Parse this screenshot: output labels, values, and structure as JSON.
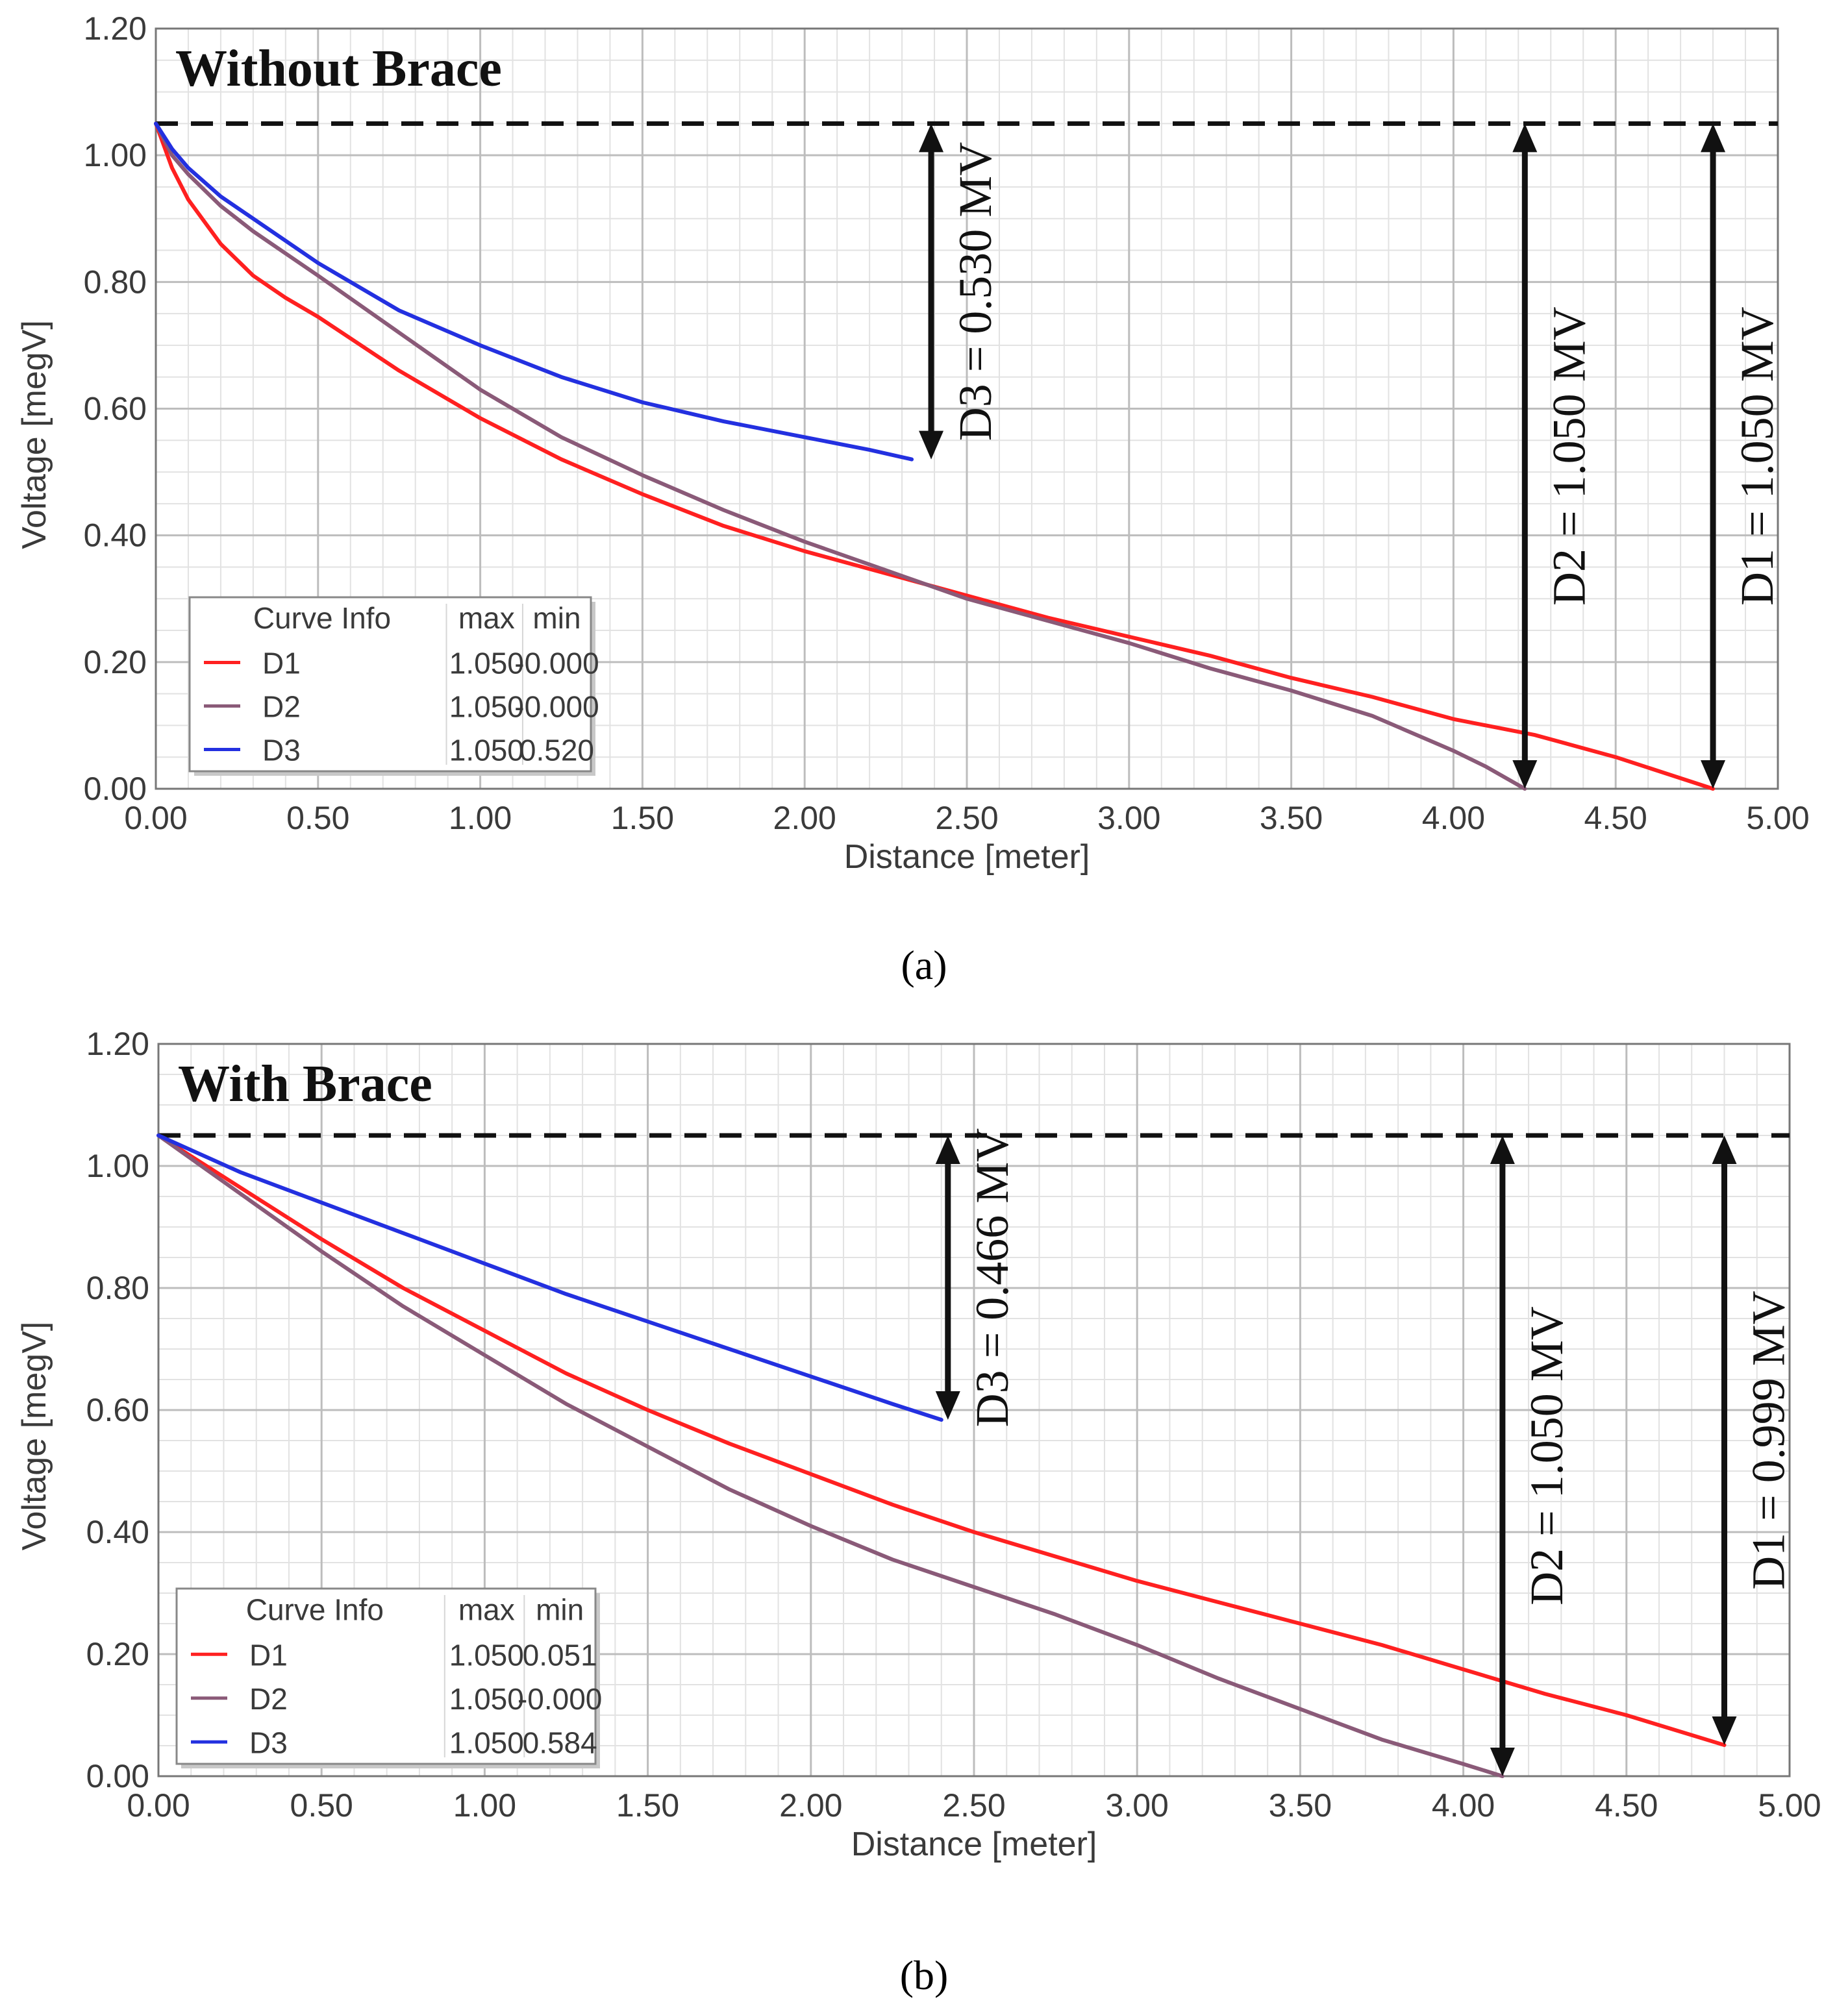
{
  "figure": {
    "caption_a": "(a)",
    "caption_b": "(b)"
  },
  "colors": {
    "D1": "#ff2020",
    "D2": "#8a5a78",
    "D3": "#2330e0",
    "grid_major": "#bdbdbd",
    "grid_minor": "#e2e2e2",
    "annotation": "#111111"
  },
  "chart_data": [
    {
      "id": "a",
      "type": "line",
      "title": "Without Brace",
      "caption": "(a)",
      "xlabel": "Distance [meter]",
      "ylabel": "Voltage [megV]",
      "xlim": [
        0,
        5
      ],
      "ylim": [
        0,
        1.2
      ],
      "xticks": [
        "0.00",
        "0.50",
        "1.00",
        "1.50",
        "2.00",
        "2.50",
        "3.00",
        "3.50",
        "4.00",
        "4.50",
        "5.00"
      ],
      "yticks": [
        "0.00",
        "0.20",
        "0.40",
        "0.60",
        "0.80",
        "1.00",
        "1.20"
      ],
      "reference_level": 1.05,
      "series": [
        {
          "name": "D1",
          "x": [
            0,
            0.05,
            0.1,
            0.2,
            0.3,
            0.4,
            0.5,
            0.75,
            1.0,
            1.25,
            1.5,
            1.75,
            2.0,
            2.25,
            2.5,
            2.75,
            3.0,
            3.25,
            3.5,
            3.75,
            4.0,
            4.25,
            4.5,
            4.8
          ],
          "y": [
            1.05,
            0.98,
            0.93,
            0.86,
            0.81,
            0.775,
            0.745,
            0.66,
            0.585,
            0.52,
            0.465,
            0.415,
            0.375,
            0.34,
            0.305,
            0.27,
            0.24,
            0.21,
            0.175,
            0.145,
            0.11,
            0.085,
            0.05,
            0.0
          ]
        },
        {
          "name": "D2",
          "x": [
            0,
            0.05,
            0.1,
            0.2,
            0.3,
            0.5,
            0.75,
            1.0,
            1.25,
            1.5,
            1.75,
            2.0,
            2.25,
            2.5,
            2.75,
            3.0,
            3.25,
            3.5,
            3.75,
            4.0,
            4.1,
            4.22
          ],
          "y": [
            1.05,
            1.0,
            0.97,
            0.92,
            0.88,
            0.81,
            0.72,
            0.63,
            0.555,
            0.495,
            0.44,
            0.39,
            0.345,
            0.3,
            0.265,
            0.23,
            0.19,
            0.155,
            0.115,
            0.06,
            0.035,
            0.0
          ]
        },
        {
          "name": "D3",
          "x": [
            0,
            0.05,
            0.1,
            0.2,
            0.3,
            0.5,
            0.75,
            1.0,
            1.25,
            1.5,
            1.75,
            2.0,
            2.2,
            2.33
          ],
          "y": [
            1.05,
            1.01,
            0.98,
            0.935,
            0.9,
            0.83,
            0.755,
            0.7,
            0.65,
            0.61,
            0.58,
            0.555,
            0.535,
            0.52
          ]
        }
      ],
      "legend": {
        "header": [
          "Curve Info",
          "max",
          "min"
        ],
        "rows": [
          {
            "name": "D1",
            "max": "1.050",
            "min": "-0.000"
          },
          {
            "name": "D2",
            "max": "1.050",
            "min": "-0.000"
          },
          {
            "name": "D3",
            "max": "1.050",
            "min": "0.520"
          }
        ],
        "position": "bottom-left"
      },
      "annotations": [
        {
          "label": "D3 = 0.530 MV",
          "x": 2.39,
          "y_from": 1.05,
          "y_to": 0.52
        },
        {
          "label": "D2 = 1.050 MV",
          "x": 4.22,
          "y_from": 1.05,
          "y_to": 0.0
        },
        {
          "label": "D1 = 1.050 MV",
          "x": 4.8,
          "y_from": 1.05,
          "y_to": 0.0
        }
      ]
    },
    {
      "id": "b",
      "type": "line",
      "title": "With Brace",
      "caption": "(b)",
      "xlabel": "Distance [meter]",
      "ylabel": "Voltage [megV]",
      "xlim": [
        0,
        5
      ],
      "ylim": [
        0,
        1.2
      ],
      "xticks": [
        "0.00",
        "0.50",
        "1.00",
        "1.50",
        "2.00",
        "2.50",
        "3.00",
        "3.50",
        "4.00",
        "4.50",
        "5.00"
      ],
      "yticks": [
        "0.00",
        "0.20",
        "0.40",
        "0.60",
        "0.80",
        "1.00",
        "1.20"
      ],
      "reference_level": 1.05,
      "series": [
        {
          "name": "D1",
          "x": [
            0,
            0.25,
            0.5,
            0.75,
            1.0,
            1.25,
            1.5,
            1.75,
            2.0,
            2.25,
            2.5,
            2.75,
            3.0,
            3.25,
            3.5,
            3.75,
            4.0,
            4.25,
            4.5,
            4.8
          ],
          "y": [
            1.05,
            0.965,
            0.88,
            0.8,
            0.73,
            0.66,
            0.6,
            0.545,
            0.495,
            0.445,
            0.4,
            0.36,
            0.32,
            0.285,
            0.25,
            0.215,
            0.175,
            0.135,
            0.1,
            0.051
          ]
        },
        {
          "name": "D2",
          "x": [
            0,
            0.25,
            0.5,
            0.75,
            1.0,
            1.25,
            1.5,
            1.75,
            2.0,
            2.25,
            2.5,
            2.75,
            3.0,
            3.25,
            3.5,
            3.75,
            4.0,
            4.12
          ],
          "y": [
            1.05,
            0.955,
            0.86,
            0.77,
            0.69,
            0.61,
            0.54,
            0.47,
            0.41,
            0.355,
            0.31,
            0.265,
            0.215,
            0.16,
            0.11,
            0.06,
            0.02,
            0.0
          ]
        },
        {
          "name": "D3",
          "x": [
            0,
            0.25,
            0.5,
            0.75,
            1.0,
            1.25,
            1.5,
            1.75,
            2.0,
            2.25,
            2.4
          ],
          "y": [
            1.05,
            0.99,
            0.94,
            0.89,
            0.84,
            0.79,
            0.745,
            0.7,
            0.655,
            0.61,
            0.584
          ]
        }
      ],
      "legend": {
        "header": [
          "Curve Info",
          "max",
          "min"
        ],
        "rows": [
          {
            "name": "D1",
            "max": "1.050",
            "min": "0.051"
          },
          {
            "name": "D2",
            "max": "1.050",
            "min": "-0.000"
          },
          {
            "name": "D3",
            "max": "1.050",
            "min": "0.584"
          }
        ],
        "position": "bottom-left"
      },
      "annotations": [
        {
          "label": "D3 = 0.466 MV",
          "x": 2.42,
          "y_from": 1.05,
          "y_to": 0.584
        },
        {
          "label": "D2 = 1.050 MV",
          "x": 4.12,
          "y_from": 1.05,
          "y_to": 0.0
        },
        {
          "label": "D1 = 0.999 MV",
          "x": 4.8,
          "y_from": 1.05,
          "y_to": 0.051
        }
      ]
    }
  ]
}
